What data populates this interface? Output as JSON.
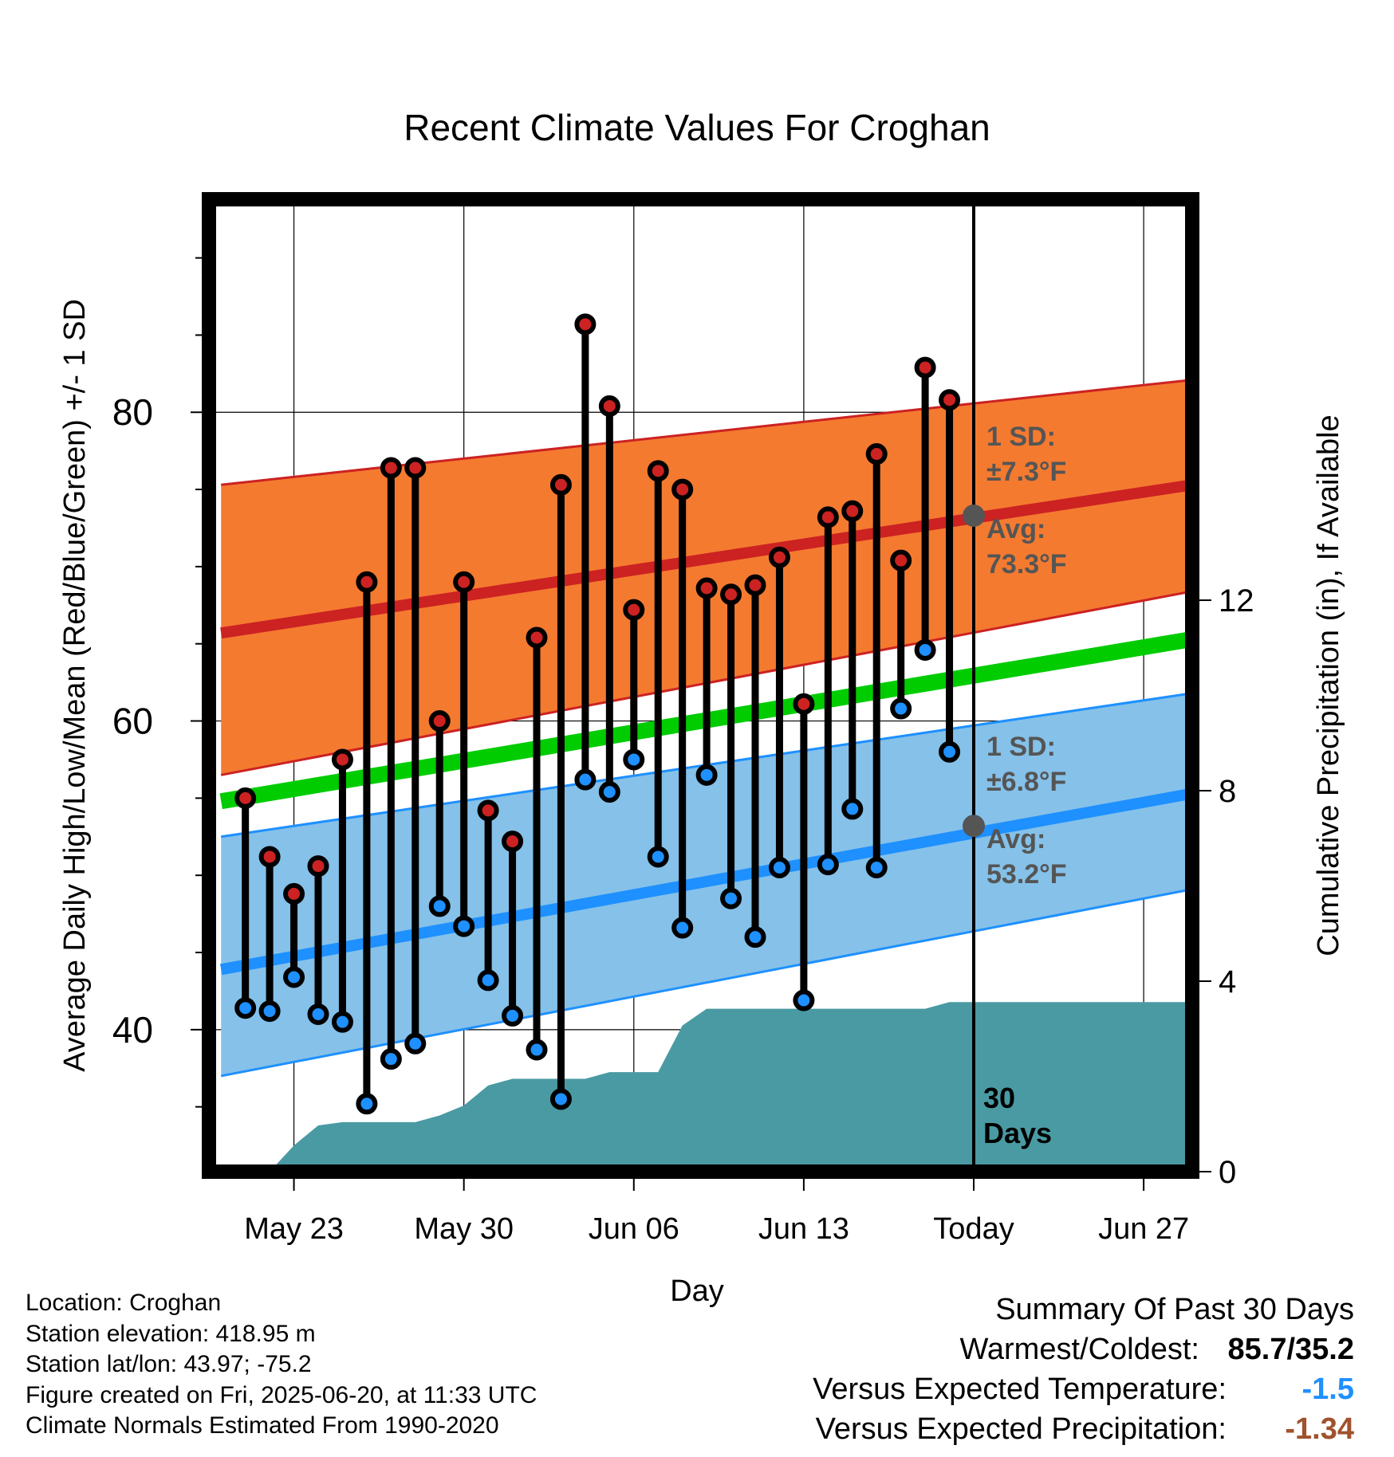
{
  "colors": {
    "high_band": "#f47a30",
    "high_line": "#cc2222",
    "low_band": "#85c1e9",
    "low_line": "#1e90ff",
    "mean_line": "#00cc00",
    "precip_fill": "#4a9aa3",
    "high_marker": "#cc2222",
    "low_marker": "#1e90ff",
    "today_marker": "#555555",
    "summary_temp": "#1e90ff",
    "summary_precip": "#a0522d",
    "annotation_text": "#555555"
  },
  "chart_data": {
    "type": "line",
    "title": "Recent Climate Values For Croghan",
    "xlabel": "Day",
    "ylabel": "Average Daily High/Low/Mean (Red/Blue/Green) +/- 1 SD",
    "y2label": "Cumulative Precipitation (in), If Available",
    "ylim": [
      30.8,
      93.8
    ],
    "y2lim": [
      0,
      20.42
    ],
    "yticks": [
      40,
      60,
      80
    ],
    "y2ticks": [
      0,
      4,
      8,
      12
    ],
    "xrange": [
      -3.5,
      37.0
    ],
    "xticks": [
      {
        "x": 0,
        "label": "May 23"
      },
      {
        "x": 7,
        "label": "May 30"
      },
      {
        "x": 14,
        "label": "Jun 06"
      },
      {
        "x": 21,
        "label": "Jun 13"
      },
      {
        "x": 28,
        "label": "Today"
      },
      {
        "x": 35,
        "label": "Jun 27"
      }
    ],
    "today_x": 28,
    "normals": {
      "x": [
        -3,
        37
      ],
      "high_avg": [
        65.7,
        75.3
      ],
      "high_upper": [
        75.3,
        82.1
      ],
      "high_lower": [
        56.5,
        68.4
      ],
      "mean_avg": [
        54.8,
        65.3
      ],
      "low_avg": [
        43.9,
        55.3
      ],
      "low_upper": [
        52.5,
        61.8
      ],
      "low_lower": [
        37.0,
        49.1
      ]
    },
    "daily": {
      "x": [
        -2,
        -1,
        0,
        1,
        2,
        3,
        4,
        5,
        6,
        7,
        8,
        9,
        10,
        11,
        12,
        13,
        14,
        15,
        16,
        17,
        18,
        19,
        20,
        21,
        22,
        23,
        24,
        25,
        26,
        27
      ],
      "high": [
        55.0,
        51.2,
        48.8,
        50.6,
        57.5,
        69.0,
        76.4,
        76.4,
        60.0,
        69.0,
        54.2,
        52.2,
        65.4,
        75.3,
        85.7,
        80.4,
        67.2,
        76.2,
        75.0,
        68.6,
        68.2,
        68.8,
        70.6,
        61.1,
        73.2,
        73.6,
        77.3,
        70.4,
        82.9,
        80.8
      ],
      "low": [
        41.4,
        41.2,
        43.4,
        41.0,
        40.5,
        35.2,
        38.1,
        39.1,
        48.0,
        46.7,
        43.2,
        40.9,
        38.7,
        35.5,
        56.2,
        55.4,
        57.5,
        51.2,
        46.6,
        56.5,
        48.5,
        46.0,
        50.5,
        41.9,
        50.7,
        54.3,
        50.5,
        60.8,
        64.6,
        58.0
      ]
    },
    "precip": {
      "x": [
        -3,
        -1,
        0,
        1,
        2,
        3,
        4,
        5,
        6,
        7,
        8,
        9,
        10,
        11,
        12,
        13,
        14,
        15,
        16,
        17,
        18,
        19,
        20,
        21,
        22,
        23,
        24,
        25,
        26,
        27,
        28,
        37
      ],
      "cum": [
        0,
        0,
        0.55,
        0.97,
        1.04,
        1.04,
        1.04,
        1.04,
        1.18,
        1.39,
        1.81,
        1.95,
        1.95,
        1.95,
        1.95,
        2.09,
        2.09,
        2.09,
        3.07,
        3.42,
        3.42,
        3.42,
        3.42,
        3.42,
        3.42,
        3.42,
        3.42,
        3.42,
        3.42,
        3.56,
        3.56,
        3.56
      ]
    },
    "annotations": {
      "high_sd_label": "1 SD:",
      "high_sd_value": "±7.3°F",
      "high_avg_label": "Avg:",
      "high_avg_value": "73.3°F",
      "high_avg_today": 73.3,
      "low_sd_label": "1 SD:",
      "low_sd_value": "±6.8°F",
      "low_avg_label": "Avg:",
      "low_avg_value": "53.2°F",
      "low_avg_today": 53.2,
      "days_line1": "30",
      "days_line2": "Days"
    }
  },
  "footer": {
    "location": "Location: Croghan",
    "elevation": "Station elevation: 418.95 m",
    "latlon": "Station lat/lon: 43.97; -75.2",
    "created": "Figure created on Fri, 2025-06-20, at 11:33 UTC",
    "normals": "Climate Normals Estimated From 1990-2020"
  },
  "summary": {
    "title": "Summary Of Past 30 Days",
    "warm_label": "Warmest/Coldest:",
    "warm_value": "85.7/35.2",
    "temp_label": "Versus Expected Temperature:",
    "temp_value": "-1.5",
    "precip_label": "Versus Expected Precipitation:",
    "precip_value": "-1.34"
  }
}
